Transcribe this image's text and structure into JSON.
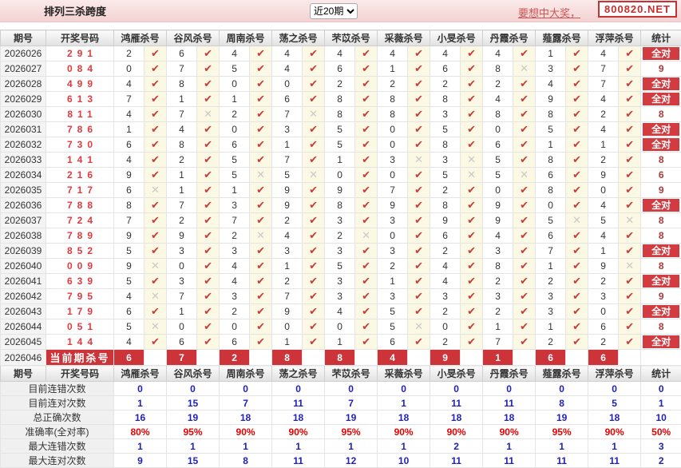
{
  "topbar": {
    "title": "排列三杀跨度",
    "range_selected": "近20期",
    "promo_text": "要想中大奖，",
    "promo_site": "800820.NET"
  },
  "columns": {
    "period": "期号",
    "numbers": "开奖号码",
    "experts": [
      "鸿雁杀号",
      "谷风杀号",
      "周南杀号",
      "荡之杀号",
      "芣苡杀号",
      "采薇杀号",
      "小旻杀号",
      "丹霞杀号",
      "薤露杀号",
      "浮萍杀号"
    ],
    "stat": "统计"
  },
  "icons": {
    "check-icon": "✔",
    "cross-icon": "✕"
  },
  "strings": {
    "all_correct": "全对",
    "current_label": "当前期杀号"
  },
  "colors": {
    "accent_red": "#CC3439",
    "check_red": "#C93B3B",
    "cross_gray": "#C9C9C9",
    "value_blue": "#2121B8",
    "percent_red": "#E60000",
    "topbar_pink": "#F3D2D2",
    "mark_cell_yellow": "#FBF9E3"
  },
  "rows": [
    {
      "period": "2026026",
      "numbers": "291",
      "kills": [
        [
          2,
          1
        ],
        [
          6,
          1
        ],
        [
          4,
          1
        ],
        [
          4,
          1
        ],
        [
          4,
          1
        ],
        [
          4,
          1
        ],
        [
          4,
          1
        ],
        [
          4,
          1
        ],
        [
          1,
          1
        ],
        [
          4,
          1
        ]
      ],
      "stat": "全对"
    },
    {
      "period": "2026027",
      "numbers": "084",
      "kills": [
        [
          0,
          1
        ],
        [
          7,
          1
        ],
        [
          5,
          1
        ],
        [
          4,
          1
        ],
        [
          6,
          1
        ],
        [
          1,
          1
        ],
        [
          6,
          1
        ],
        [
          8,
          0
        ],
        [
          3,
          1
        ],
        [
          7,
          1
        ]
      ],
      "stat": "9"
    },
    {
      "period": "2026028",
      "numbers": "499",
      "kills": [
        [
          4,
          1
        ],
        [
          8,
          1
        ],
        [
          0,
          1
        ],
        [
          0,
          1
        ],
        [
          2,
          1
        ],
        [
          2,
          1
        ],
        [
          2,
          1
        ],
        [
          2,
          1
        ],
        [
          4,
          1
        ],
        [
          7,
          1
        ]
      ],
      "stat": "全对"
    },
    {
      "period": "2026029",
      "numbers": "613",
      "kills": [
        [
          7,
          1
        ],
        [
          1,
          1
        ],
        [
          1,
          1
        ],
        [
          6,
          1
        ],
        [
          8,
          1
        ],
        [
          8,
          1
        ],
        [
          8,
          1
        ],
        [
          4,
          1
        ],
        [
          9,
          1
        ],
        [
          4,
          1
        ]
      ],
      "stat": "全对"
    },
    {
      "period": "2026030",
      "numbers": "811",
      "kills": [
        [
          4,
          1
        ],
        [
          7,
          0
        ],
        [
          2,
          1
        ],
        [
          7,
          0
        ],
        [
          8,
          1
        ],
        [
          8,
          1
        ],
        [
          3,
          1
        ],
        [
          8,
          1
        ],
        [
          8,
          1
        ],
        [
          2,
          1
        ]
      ],
      "stat": "8"
    },
    {
      "period": "2026031",
      "numbers": "786",
      "kills": [
        [
          1,
          1
        ],
        [
          4,
          1
        ],
        [
          0,
          1
        ],
        [
          3,
          1
        ],
        [
          5,
          1
        ],
        [
          0,
          1
        ],
        [
          5,
          1
        ],
        [
          0,
          1
        ],
        [
          5,
          1
        ],
        [
          4,
          1
        ]
      ],
      "stat": "全对"
    },
    {
      "period": "2026032",
      "numbers": "730",
      "kills": [
        [
          6,
          1
        ],
        [
          8,
          1
        ],
        [
          6,
          1
        ],
        [
          1,
          1
        ],
        [
          5,
          1
        ],
        [
          0,
          1
        ],
        [
          8,
          1
        ],
        [
          6,
          1
        ],
        [
          1,
          1
        ],
        [
          1,
          1
        ]
      ],
      "stat": "全对"
    },
    {
      "period": "2026033",
      "numbers": "141",
      "kills": [
        [
          4,
          1
        ],
        [
          2,
          1
        ],
        [
          5,
          1
        ],
        [
          7,
          1
        ],
        [
          1,
          1
        ],
        [
          3,
          0
        ],
        [
          3,
          0
        ],
        [
          5,
          1
        ],
        [
          8,
          1
        ],
        [
          2,
          1
        ]
      ],
      "stat": "8"
    },
    {
      "period": "2026034",
      "numbers": "216",
      "kills": [
        [
          9,
          1
        ],
        [
          1,
          1
        ],
        [
          5,
          0
        ],
        [
          5,
          0
        ],
        [
          0,
          1
        ],
        [
          0,
          1
        ],
        [
          5,
          0
        ],
        [
          5,
          0
        ],
        [
          6,
          1
        ],
        [
          9,
          1
        ]
      ],
      "stat": "6"
    },
    {
      "period": "2026035",
      "numbers": "717",
      "kills": [
        [
          6,
          0
        ],
        [
          1,
          1
        ],
        [
          1,
          1
        ],
        [
          9,
          1
        ],
        [
          9,
          1
        ],
        [
          7,
          1
        ],
        [
          2,
          1
        ],
        [
          0,
          1
        ],
        [
          8,
          1
        ],
        [
          0,
          1
        ]
      ],
      "stat": "9"
    },
    {
      "period": "2026036",
      "numbers": "788",
      "kills": [
        [
          8,
          1
        ],
        [
          7,
          1
        ],
        [
          3,
          1
        ],
        [
          9,
          1
        ],
        [
          8,
          1
        ],
        [
          9,
          1
        ],
        [
          8,
          1
        ],
        [
          9,
          1
        ],
        [
          0,
          1
        ],
        [
          4,
          1
        ]
      ],
      "stat": "全对"
    },
    {
      "period": "2026037",
      "numbers": "724",
      "kills": [
        [
          7,
          1
        ],
        [
          2,
          1
        ],
        [
          7,
          1
        ],
        [
          2,
          1
        ],
        [
          3,
          1
        ],
        [
          3,
          1
        ],
        [
          9,
          1
        ],
        [
          9,
          1
        ],
        [
          5,
          0
        ],
        [
          5,
          0
        ]
      ],
      "stat": "8"
    },
    {
      "period": "2026038",
      "numbers": "789",
      "kills": [
        [
          9,
          1
        ],
        [
          9,
          1
        ],
        [
          2,
          0
        ],
        [
          4,
          1
        ],
        [
          2,
          0
        ],
        [
          0,
          1
        ],
        [
          6,
          1
        ],
        [
          4,
          1
        ],
        [
          6,
          1
        ],
        [
          4,
          1
        ]
      ],
      "stat": "8"
    },
    {
      "period": "2026039",
      "numbers": "852",
      "kills": [
        [
          5,
          1
        ],
        [
          3,
          1
        ],
        [
          3,
          1
        ],
        [
          3,
          1
        ],
        [
          3,
          1
        ],
        [
          3,
          1
        ],
        [
          2,
          1
        ],
        [
          3,
          1
        ],
        [
          7,
          1
        ],
        [
          1,
          1
        ]
      ],
      "stat": "全对"
    },
    {
      "period": "2026040",
      "numbers": "009",
      "kills": [
        [
          9,
          0
        ],
        [
          0,
          1
        ],
        [
          4,
          1
        ],
        [
          1,
          1
        ],
        [
          5,
          1
        ],
        [
          2,
          1
        ],
        [
          4,
          1
        ],
        [
          8,
          1
        ],
        [
          1,
          1
        ],
        [
          9,
          0
        ]
      ],
      "stat": "8"
    },
    {
      "period": "2026041",
      "numbers": "639",
      "kills": [
        [
          5,
          1
        ],
        [
          3,
          1
        ],
        [
          4,
          1
        ],
        [
          2,
          1
        ],
        [
          3,
          1
        ],
        [
          1,
          1
        ],
        [
          4,
          1
        ],
        [
          2,
          1
        ],
        [
          2,
          1
        ],
        [
          2,
          1
        ]
      ],
      "stat": "全对"
    },
    {
      "period": "2026042",
      "numbers": "795",
      "kills": [
        [
          4,
          0
        ],
        [
          7,
          1
        ],
        [
          3,
          1
        ],
        [
          7,
          1
        ],
        [
          3,
          1
        ],
        [
          3,
          1
        ],
        [
          3,
          1
        ],
        [
          3,
          1
        ],
        [
          3,
          1
        ],
        [
          3,
          1
        ]
      ],
      "stat": "9"
    },
    {
      "period": "2026043",
      "numbers": "179",
      "kills": [
        [
          6,
          1
        ],
        [
          1,
          1
        ],
        [
          2,
          1
        ],
        [
          9,
          1
        ],
        [
          4,
          1
        ],
        [
          5,
          1
        ],
        [
          2,
          1
        ],
        [
          2,
          1
        ],
        [
          3,
          1
        ],
        [
          0,
          1
        ]
      ],
      "stat": "全对"
    },
    {
      "period": "2026044",
      "numbers": "051",
      "kills": [
        [
          5,
          0
        ],
        [
          0,
          1
        ],
        [
          0,
          1
        ],
        [
          0,
          1
        ],
        [
          0,
          1
        ],
        [
          5,
          0
        ],
        [
          0,
          1
        ],
        [
          1,
          1
        ],
        [
          1,
          1
        ],
        [
          6,
          1
        ]
      ],
      "stat": "8"
    },
    {
      "period": "2026045",
      "numbers": "144",
      "kills": [
        [
          4,
          1
        ],
        [
          6,
          1
        ],
        [
          6,
          1
        ],
        [
          1,
          1
        ],
        [
          1,
          1
        ],
        [
          6,
          1
        ],
        [
          2,
          1
        ],
        [
          7,
          1
        ],
        [
          2,
          1
        ],
        [
          2,
          1
        ]
      ],
      "stat": "全对"
    }
  ],
  "current_row": {
    "period": "2026046",
    "kills": [
      6,
      7,
      2,
      8,
      8,
      4,
      9,
      1,
      6,
      6
    ]
  },
  "summary_rows": [
    {
      "label": "目前连错次数",
      "values": [
        "0",
        "0",
        "0",
        "0",
        "0",
        "0",
        "0",
        "0",
        "0",
        "0"
      ],
      "stat": "0",
      "color": "blue"
    },
    {
      "label": "目前连对次数",
      "values": [
        "1",
        "15",
        "7",
        "11",
        "7",
        "1",
        "11",
        "11",
        "8",
        "5"
      ],
      "stat": "1",
      "color": "blue"
    },
    {
      "label": "总正确次数",
      "values": [
        "16",
        "19",
        "18",
        "18",
        "19",
        "18",
        "18",
        "18",
        "19",
        "18"
      ],
      "stat": "10",
      "color": "blue"
    },
    {
      "label": "准确率(全对率)",
      "values": [
        "80%",
        "95%",
        "90%",
        "90%",
        "95%",
        "90%",
        "90%",
        "90%",
        "95%",
        "90%"
      ],
      "stat": "50%",
      "color": "red"
    },
    {
      "label": "最大连错次数",
      "values": [
        "1",
        "1",
        "1",
        "1",
        "1",
        "1",
        "2",
        "1",
        "1",
        "1"
      ],
      "stat": "3",
      "color": "blue"
    },
    {
      "label": "最大连对次数",
      "values": [
        "9",
        "15",
        "8",
        "11",
        "12",
        "10",
        "11",
        "11",
        "11",
        "11"
      ],
      "stat": "2",
      "color": "blue"
    }
  ]
}
